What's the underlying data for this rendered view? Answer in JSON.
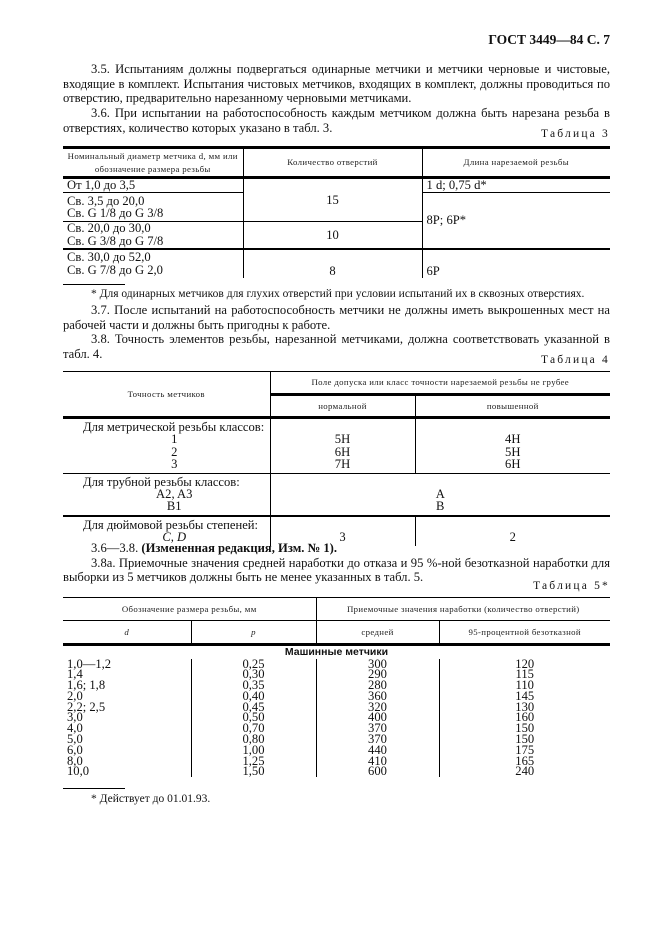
{
  "header": "ГОСТ 3449—84 С. 7",
  "paragraphs_top": [
    "3.5. Испытаниям должны подвергаться одинарные метчики и метчики черновые и чистовые, входящие в комплект. Испытания чистовых метчиков, входящих в комплект, должны проводиться по отверстию, предварительно нарезанному черновыми метчиками.",
    "3.6. При испытании на работоспособность каждым метчиком должна быть нарезана резьба в отверстиях, количество которых указано в табл. 3."
  ],
  "table3": {
    "caption": "Таблица 3",
    "headers": [
      "Номинальный диаметр метчика d, мм или обозначение размера резьбы",
      "Количество отверстий",
      "Длина нарезаемой резьбы"
    ],
    "rows": [
      {
        "size": [
          "От 1,0 до 3,5"
        ]
      },
      {
        "size": [
          "Св. 3,5 до 20,0",
          "Св. G 1/8 до G 3/8"
        ]
      },
      {
        "size": [
          "Св. 20,0 до 30,0",
          "Св. G 3/8 до G 7/8"
        ]
      },
      {
        "size": [
          "Св. 30,0 до 52,0",
          "Св. G 7/8 до G 2,0"
        ]
      }
    ],
    "holes": [
      "15",
      "10",
      "8"
    ],
    "length": [
      "1 d; 0,75 d*",
      "8P; 6P*",
      "6P"
    ],
    "footnote": "* Для одинарных метчиков для глухих отверстий при условии испытаний их в сквозных отверстиях."
  },
  "paragraphs_mid": [
    "3.7. После испытаний на работоспособность метчики не должны иметь выкрошенных мест на рабочей части и должны быть пригодны к работе.",
    "3.8. Точность элементов резьбы, нарезанной метчиками, должна соответствовать указанной в табл. 4."
  ],
  "table4": {
    "caption": "Таблица 4",
    "header_left": "Точность метчиков",
    "header_group": "Поле допуска или класс точности нарезаемой резьбы не грубее",
    "header_sub": [
      "нормальной",
      "повышенной"
    ],
    "groups": [
      {
        "title": "Для метрической резьбы классов:",
        "rows": [
          [
            "1",
            "5H",
            "4H"
          ],
          [
            "2",
            "6H",
            "5H"
          ],
          [
            "3",
            "7H",
            "6H"
          ]
        ]
      },
      {
        "title": "Для трубной резьбы классов:",
        "rows": [
          [
            "A2, A3",
            "A"
          ],
          [
            "B1",
            "B"
          ]
        ]
      },
      {
        "title": "Для дюймовой резьбы степеней:",
        "rows": [
          [
            "C, D",
            "3",
            "2"
          ]
        ]
      }
    ]
  },
  "amendment": {
    "prefix": "3.6—3.8.",
    "bold": "(Измененная редакция, Изм. № 1)."
  },
  "paragraph_38a": "3.8а. Приемочные значения средней наработки до отказа и 95 %-ной безотказной наработки для выборки из 5 метчиков должны быть не менее указанных в табл. 5.",
  "table5": {
    "caption": "Таблица 5*",
    "header_group1": "Обозначение размера резьбы, мм",
    "header_group2": "Приемочные значения наработки (количество отверстий)",
    "sub_headers": [
      "d",
      "p",
      "средней",
      "95-процентной безотказной"
    ],
    "section": "Машинные метчики",
    "rows": [
      [
        "1,0—1,2",
        "0,25",
        "300",
        "120"
      ],
      [
        "1,4",
        "0,30",
        "290",
        "115"
      ],
      [
        "1,6; 1,8",
        "0,35",
        "280",
        "110"
      ],
      [
        "2,0",
        "0,40",
        "360",
        "145"
      ],
      [
        "2,2; 2,5",
        "0,45",
        "320",
        "130"
      ],
      [
        "3,0",
        "0,50",
        "400",
        "160"
      ],
      [
        "4,0",
        "0,70",
        "370",
        "150"
      ],
      [
        "5,0",
        "0,80",
        "370",
        "150"
      ],
      [
        "6,0",
        "1,00",
        "440",
        "175"
      ],
      [
        "8,0",
        "1,25",
        "410",
        "165"
      ],
      [
        "10,0",
        "1,50",
        "600",
        "240"
      ]
    ],
    "footnote": "* Действует до 01.01.93."
  }
}
